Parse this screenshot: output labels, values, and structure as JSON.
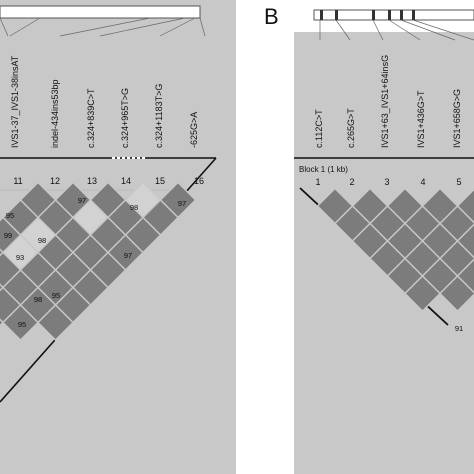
{
  "panel_b": {
    "letter": "B",
    "block_label": "Block 1 (1 kb)"
  },
  "panel_a": {
    "snp_labels": [
      "IVS1-37_IVS1-38insAT",
      "indel-434ins53bp",
      "c.324+839C>T",
      "c.324+965T>G",
      "c.324+1183T>G",
      "-625G>A"
    ],
    "marker_numbers": [
      "11",
      "12",
      "13",
      "14",
      "15",
      "16"
    ],
    "ld_values": [
      "95",
      "97",
      "98",
      "99",
      "93",
      "98",
      "98",
      "97",
      "97",
      "95",
      "95"
    ]
  },
  "panel_b_data": {
    "snp_labels": [
      "c.112C>T",
      "c.265G>T",
      "IVS1+63_IVS1+64insG",
      "IVS1+436G>T",
      "IVS1+658G>G"
    ],
    "marker_numbers": [
      "1",
      "2",
      "3",
      "4",
      "5"
    ],
    "ld_values": [
      "91"
    ]
  },
  "colors": {
    "panel_background": "#c8c8c8",
    "cell_dark": "#7c7c7c",
    "cell_light": "#d2d2d2",
    "line": "#111111"
  }
}
